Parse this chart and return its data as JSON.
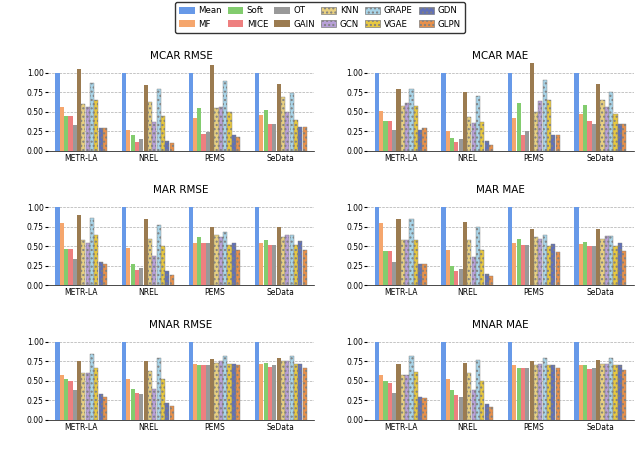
{
  "methods": [
    "Mean",
    "MF",
    "Soft",
    "MICE",
    "OT",
    "GAIN",
    "KNN",
    "GCN",
    "GRAPE",
    "VGAE",
    "GDN",
    "GLPN"
  ],
  "datasets": [
    "METR-LA",
    "NREL",
    "PEMS",
    "SeData"
  ],
  "colors": [
    "#6799E8",
    "#F5A66D",
    "#82CC6E",
    "#EE7F7F",
    "#999999",
    "#9B7B50",
    "#E8D080",
    "#B8A0D8",
    "#A8D4E8",
    "#E8C840",
    "#6070B8",
    "#E8904A"
  ],
  "hatches": [
    "",
    "",
    "",
    "",
    "",
    "",
    "....",
    "....",
    "....",
    "....",
    "....",
    "...."
  ],
  "hatch_types": {
    "KNN": "....",
    "GCN": "....",
    "GRAPE": "....",
    "VGAE": "....",
    "GDN": "....",
    "GLPN": "...."
  },
  "data": {
    "MCAR RMSE": {
      "METR-LA": [
        1.0,
        0.57,
        0.45,
        0.45,
        0.33,
        1.05,
        0.6,
        0.57,
        0.87,
        0.65,
        0.3,
        0.29
      ],
      "NREL": [
        1.0,
        0.27,
        0.2,
        0.12,
        0.15,
        0.85,
        0.63,
        0.37,
        0.8,
        0.45,
        0.13,
        0.1
      ],
      "PEMS": [
        1.0,
        0.42,
        0.55,
        0.22,
        0.24,
        1.1,
        0.55,
        0.57,
        0.9,
        0.5,
        0.2,
        0.18
      ],
      "SeData": [
        1.0,
        0.46,
        0.52,
        0.35,
        0.34,
        0.86,
        0.69,
        0.5,
        0.74,
        0.4,
        0.31,
        0.31
      ]
    },
    "MCAR MAE": {
      "METR-LA": [
        1.0,
        0.51,
        0.39,
        0.38,
        0.27,
        0.79,
        0.58,
        0.61,
        0.8,
        0.58,
        0.27,
        0.29
      ],
      "NREL": [
        1.0,
        0.26,
        0.17,
        0.12,
        0.15,
        0.76,
        0.43,
        0.36,
        0.71,
        0.37,
        0.13,
        0.07
      ],
      "PEMS": [
        1.0,
        0.42,
        0.62,
        0.21,
        0.25,
        1.13,
        0.5,
        0.64,
        0.91,
        0.65,
        0.2,
        0.21
      ],
      "SeData": [
        1.0,
        0.47,
        0.59,
        0.38,
        0.34,
        0.86,
        0.65,
        0.56,
        0.75,
        0.47,
        0.34,
        0.34
      ]
    },
    "MAR RMSE": {
      "METR-LA": [
        1.0,
        0.8,
        0.47,
        0.47,
        0.34,
        0.9,
        0.58,
        0.55,
        0.87,
        0.65,
        0.3,
        0.27
      ],
      "NREL": [
        1.0,
        0.48,
        0.28,
        0.2,
        0.22,
        0.85,
        0.6,
        0.38,
        0.78,
        0.5,
        0.18,
        0.13
      ],
      "PEMS": [
        1.0,
        0.55,
        0.62,
        0.55,
        0.55,
        0.75,
        0.65,
        0.62,
        0.68,
        0.52,
        0.55,
        0.45
      ],
      "SeData": [
        1.0,
        0.55,
        0.58,
        0.52,
        0.52,
        0.75,
        0.62,
        0.65,
        0.65,
        0.52,
        0.57,
        0.46
      ]
    },
    "MAR MAE": {
      "METR-LA": [
        1.0,
        0.8,
        0.44,
        0.44,
        0.3,
        0.85,
        0.58,
        0.58,
        0.85,
        0.58,
        0.28,
        0.27
      ],
      "NREL": [
        1.0,
        0.46,
        0.25,
        0.18,
        0.21,
        0.82,
        0.58,
        0.36,
        0.75,
        0.45,
        0.15,
        0.12
      ],
      "PEMS": [
        1.0,
        0.55,
        0.6,
        0.52,
        0.52,
        0.72,
        0.62,
        0.6,
        0.65,
        0.5,
        0.53,
        0.43
      ],
      "SeData": [
        1.0,
        0.53,
        0.56,
        0.5,
        0.5,
        0.73,
        0.6,
        0.63,
        0.63,
        0.5,
        0.55,
        0.44
      ]
    },
    "MNAR RMSE": {
      "METR-LA": [
        1.0,
        0.58,
        0.52,
        0.5,
        0.38,
        0.75,
        0.6,
        0.6,
        0.85,
        0.67,
        0.33,
        0.3
      ],
      "NREL": [
        1.0,
        0.52,
        0.4,
        0.35,
        0.33,
        0.75,
        0.63,
        0.4,
        0.8,
        0.53,
        0.22,
        0.18
      ],
      "PEMS": [
        1.0,
        0.72,
        0.7,
        0.7,
        0.7,
        0.78,
        0.73,
        0.75,
        0.82,
        0.72,
        0.72,
        0.7
      ],
      "SeData": [
        1.0,
        0.72,
        0.73,
        0.68,
        0.7,
        0.8,
        0.75,
        0.75,
        0.82,
        0.72,
        0.72,
        0.67
      ]
    },
    "MNAR MAE": {
      "METR-LA": [
        1.0,
        0.58,
        0.5,
        0.48,
        0.35,
        0.72,
        0.58,
        0.58,
        0.82,
        0.62,
        0.3,
        0.28
      ],
      "NREL": [
        1.0,
        0.52,
        0.38,
        0.32,
        0.3,
        0.73,
        0.6,
        0.38,
        0.77,
        0.5,
        0.2,
        0.16
      ],
      "PEMS": [
        1.0,
        0.7,
        0.67,
        0.67,
        0.67,
        0.75,
        0.7,
        0.72,
        0.8,
        0.7,
        0.7,
        0.67
      ],
      "SeData": [
        1.0,
        0.7,
        0.7,
        0.65,
        0.67,
        0.77,
        0.72,
        0.72,
        0.8,
        0.7,
        0.7,
        0.64
      ]
    }
  },
  "plot_order": [
    [
      "MCAR RMSE",
      "MCAR MAE"
    ],
    [
      "MAR RMSE",
      "MAR MAE"
    ],
    [
      "MNAR RMSE",
      "MNAR MAE"
    ]
  ],
  "legend_labels": [
    "Mean",
    "MF",
    "Soft",
    "MICE",
    "OT",
    "GAIN",
    "KNN",
    "GCN",
    "GRAPE",
    "VGAE",
    "GDN",
    "GLPN"
  ],
  "ylim": [
    0,
    1.15
  ],
  "yticks": [
    0.0,
    0.25,
    0.5,
    0.75,
    1.0
  ],
  "bar_width": 0.065,
  "figsize": [
    6.4,
    4.54
  ],
  "dpi": 100
}
